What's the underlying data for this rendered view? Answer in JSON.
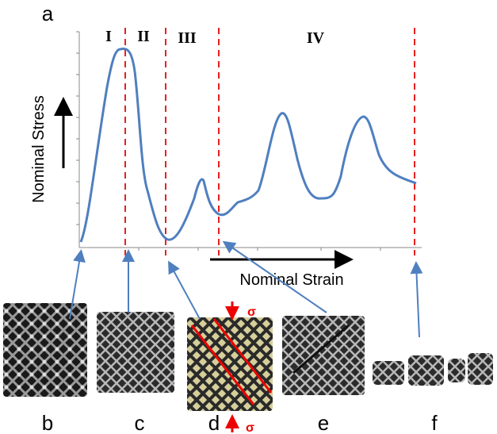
{
  "figure": {
    "panel_label": "a",
    "regions": [
      "I",
      "II",
      "III",
      "IV"
    ],
    "y_axis_label": "Nominal Stress",
    "x_axis_label": "Nominal Strain",
    "load_symbol": "σ",
    "photo_labels": [
      "b",
      "c",
      "d",
      "e",
      "f"
    ]
  }
}
